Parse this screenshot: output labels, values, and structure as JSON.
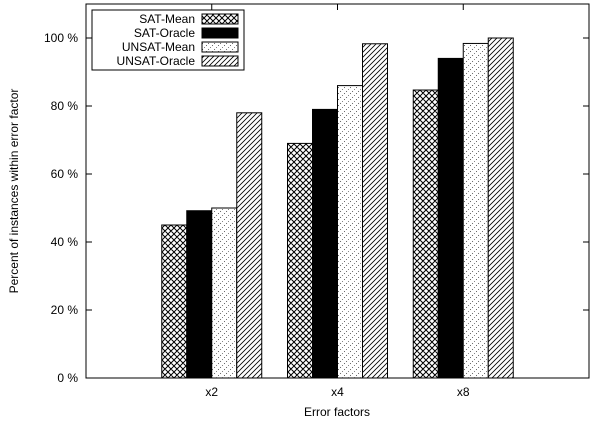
{
  "chart_data": {
    "type": "bar",
    "xlabel": "Error factors",
    "ylabel": "Percent of instances within error factor",
    "ylim": [
      0,
      110
    ],
    "yticks": [
      0,
      20,
      40,
      60,
      80,
      100
    ],
    "ytick_labels": [
      "0 %",
      "20 %",
      "40 %",
      "60 %",
      "80 %",
      "100 %"
    ],
    "categories": [
      "x2",
      "x4",
      "x8"
    ],
    "legend_position": "top-left",
    "series": [
      {
        "name": "SAT-Mean",
        "pattern": "crosshatch",
        "values": [
          45,
          69,
          84.7
        ]
      },
      {
        "name": "SAT-Oracle",
        "pattern": "solid-black",
        "values": [
          49.2,
          79,
          94
        ]
      },
      {
        "name": "UNSAT-Mean",
        "pattern": "sparse-dots",
        "values": [
          50,
          86,
          98.4
        ]
      },
      {
        "name": "UNSAT-Oracle",
        "pattern": "diagonal",
        "values": [
          78,
          98.3,
          100
        ]
      }
    ]
  }
}
